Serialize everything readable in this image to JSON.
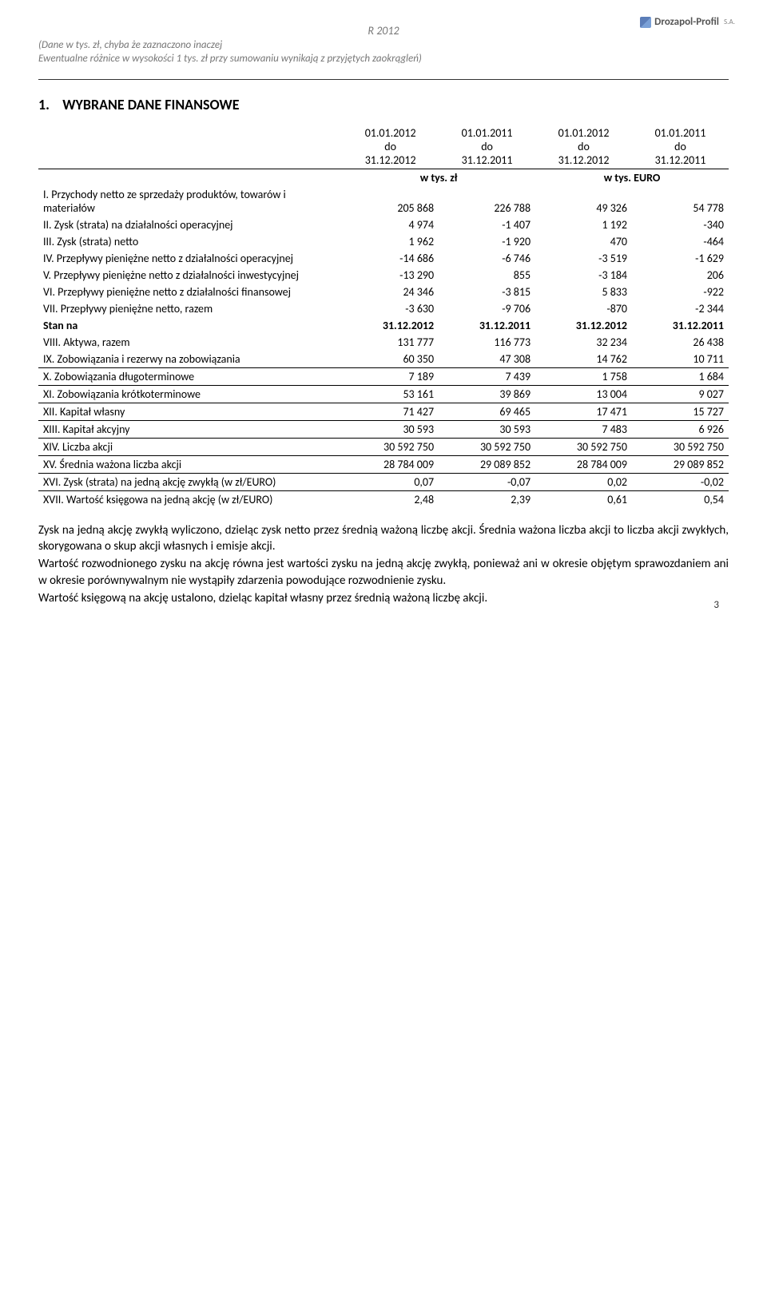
{
  "header": {
    "period": "R 2012",
    "note_line1": "(Dane w tys. zł, chyba że zaznaczono inaczej",
    "note_line2": "Ewentualne różnice w wysokości 1 tys. zł przy sumowaniu wynikają z przyjętych zaokrągleń)",
    "logo_text": "Drozapol-Profil",
    "logo_sa": "S.A."
  },
  "section": {
    "number": "1.",
    "title": "WYBRANE DANE FINANSOWE"
  },
  "table": {
    "periods": [
      "01.01.2012 do 31.12.2012",
      "01.01.2011 do 31.12.2011",
      "01.01.2012 do 31.12.2012",
      "01.01.2011 do 31.12.2011"
    ],
    "unit_zl": "w tys. zł",
    "unit_euro": "w tys. EURO",
    "rows_a": [
      {
        "label": "I. Przychody netto ze sprzedaży produktów, towarów i materiałów",
        "v": [
          "205 868",
          "226 788",
          "49 326",
          "54 778"
        ]
      },
      {
        "label": "II. Zysk (strata) na działalności operacyjnej",
        "v": [
          "4 974",
          "-1 407",
          "1 192",
          "-340"
        ]
      },
      {
        "label": "III. Zysk (strata) netto",
        "v": [
          "1 962",
          "-1 920",
          "470",
          "-464"
        ]
      },
      {
        "label": "IV. Przepływy pieniężne netto z działalności operacyjnej",
        "v": [
          "-14 686",
          "-6 746",
          "-3 519",
          "-1 629"
        ]
      },
      {
        "label": "V. Przepływy pieniężne netto z działalności inwestycyjnej",
        "v": [
          "-13 290",
          "855",
          "-3 184",
          "206"
        ]
      },
      {
        "label": "VI. Przepływy pieniężne netto z działalności finansowej",
        "v": [
          "24 346",
          "-3 815",
          "5 833",
          "-922"
        ]
      },
      {
        "label": "VII. Przepływy pieniężne netto, razem",
        "v": [
          "-3 630",
          "-9 706",
          "-870",
          "-2 344"
        ]
      }
    ],
    "stan_label": "Stan na",
    "stan_dates": [
      "31.12.2012",
      "31.12.2011",
      "31.12.2012",
      "31.12.2011"
    ],
    "rows_b": [
      {
        "label": "VIII. Aktywa, razem",
        "v": [
          "131 777",
          "116 773",
          "32 234",
          "26 438"
        ]
      },
      {
        "label": "IX. Zobowiązania i rezerwy na zobowiązania",
        "v": [
          "60 350",
          "47 308",
          "14 762",
          "10 711"
        ]
      },
      {
        "label": "X. Zobowiązania długoterminowe",
        "v": [
          "7 189",
          "7 439",
          "1 758",
          "1 684"
        ]
      },
      {
        "label": "XI. Zobowiązania krótkoterminowe",
        "v": [
          "53 161",
          "39 869",
          "13 004",
          "9 027"
        ]
      },
      {
        "label": "XII. Kapitał własny",
        "v": [
          "71 427",
          "69 465",
          "17 471",
          "15 727"
        ]
      },
      {
        "label": "XIII. Kapitał akcyjny",
        "v": [
          "30 593",
          "30 593",
          "7 483",
          "6 926"
        ]
      },
      {
        "label": "XIV. Liczba akcji",
        "v": [
          "30 592 750",
          "30 592 750",
          "30 592 750",
          "30 592 750"
        ]
      },
      {
        "label": "XV. Średnia ważona liczba akcji",
        "v": [
          "28 784 009",
          "29 089 852",
          "28 784 009",
          "29 089 852"
        ]
      },
      {
        "label": "XVI. Zysk (strata) na jedną akcję zwykłą (w zł/EURO)",
        "v": [
          "0,07",
          "-0,07",
          "0,02",
          "-0,02"
        ]
      },
      {
        "label": "XVII. Wartość księgowa na jedną akcję (w zł/EURO)",
        "v": [
          "2,48",
          "2,39",
          "0,61",
          "0,54"
        ]
      }
    ]
  },
  "body": {
    "p1": "Zysk na jedną akcję zwykłą wyliczono, dzieląc zysk netto przez średnią ważoną liczbę akcji. Średnia ważona liczba akcji to liczba akcji zwykłych, skorygowana o skup akcji własnych i emisje akcji.",
    "p2": "Wartość rozwodnionego zysku na akcję równa jest wartości zysku na jedną akcję zwykłą, ponieważ ani w okresie objętym sprawozdaniem ani w okresie porównywalnym nie wystąpiły zdarzenia powodujące rozwodnienie zysku.",
    "p3": "Wartość księgową na akcję ustalono, dzieląc kapitał własny przez średnią ważoną liczbę akcji."
  },
  "page_number": "3",
  "colors": {
    "header_grey": "#777777",
    "text": "#000000",
    "rule": "#000000"
  }
}
